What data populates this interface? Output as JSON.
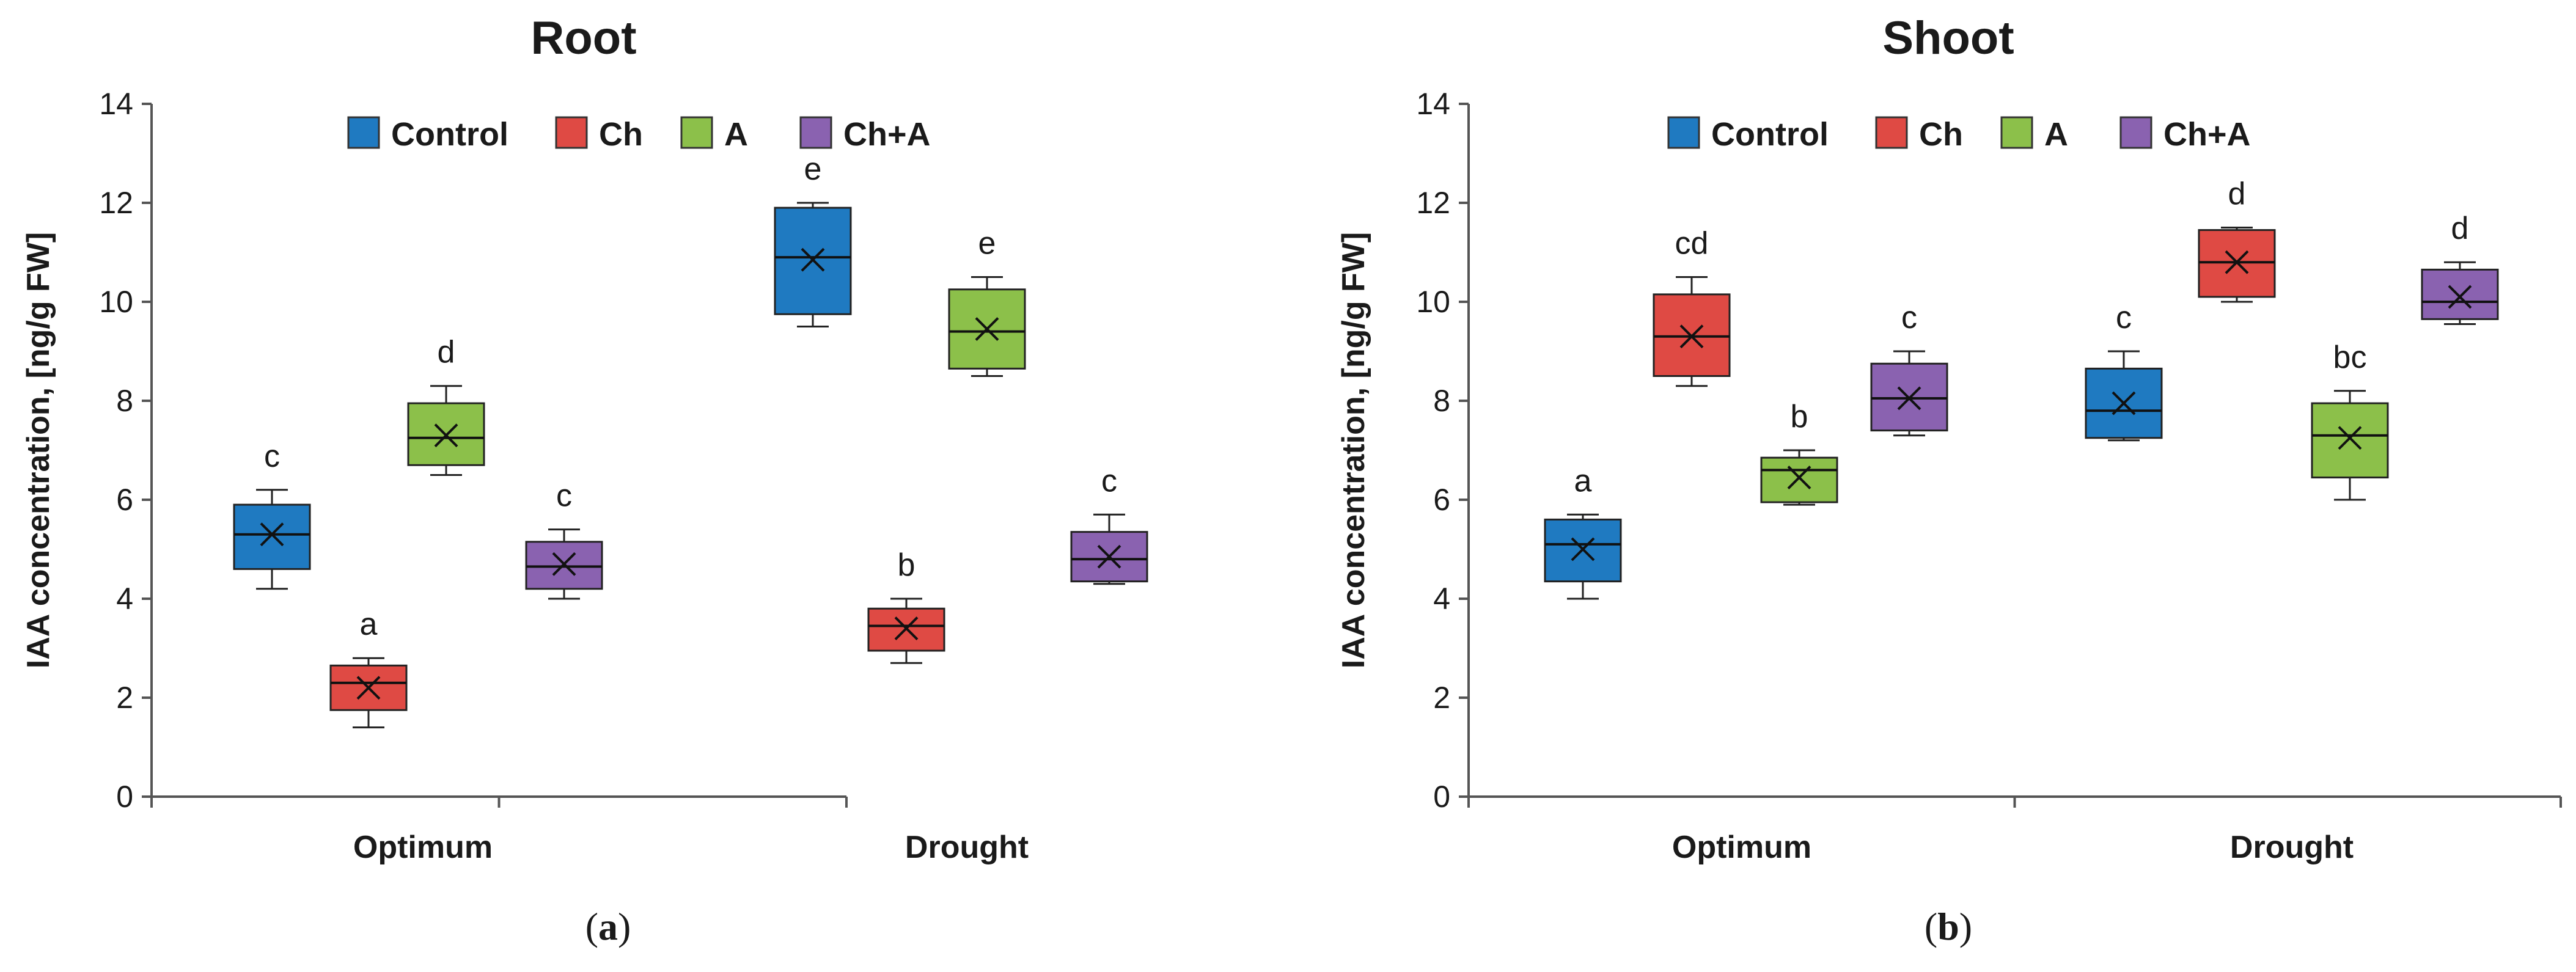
{
  "chart_data": [
    {
      "type": "box",
      "panel": "(a)",
      "panel_label": {
        "open": "(",
        "letter": "a",
        "close": ")"
      },
      "title": "Root",
      "ylabel": "IAA concentration, [ng/g FW]",
      "ylim": [
        0,
        14
      ],
      "yticks": [
        0,
        2,
        4,
        6,
        8,
        10,
        12,
        14
      ],
      "categories": [
        "Optimum",
        "Drought"
      ],
      "legend": [
        "Control",
        "Ch",
        "A",
        "Ch+A"
      ],
      "colors": {
        "Control": "#1f7ac1",
        "Ch": "#df4a44",
        "A": "#8cc04a",
        "Ch+A": "#8a62b0"
      },
      "series": [
        {
          "name": "Control",
          "boxes": [
            {
              "category": "Optimum",
              "min": 4.2,
              "q1": 4.6,
              "median": 5.3,
              "q3": 5.9,
              "max": 6.2,
              "mean": 5.3,
              "letter": "c"
            },
            {
              "category": "Drought",
              "min": 9.5,
              "q1": 9.75,
              "median": 10.9,
              "q3": 11.9,
              "max": 12.0,
              "mean": 10.85,
              "letter": "e"
            }
          ]
        },
        {
          "name": "Ch",
          "boxes": [
            {
              "category": "Optimum",
              "min": 1.4,
              "q1": 1.75,
              "median": 2.3,
              "q3": 2.65,
              "max": 2.8,
              "mean": 2.2,
              "letter": "a"
            },
            {
              "category": "Drought",
              "min": 2.7,
              "q1": 2.95,
              "median": 3.45,
              "q3": 3.8,
              "max": 4.0,
              "mean": 3.4,
              "letter": "b"
            }
          ]
        },
        {
          "name": "A",
          "boxes": [
            {
              "category": "Optimum",
              "min": 6.5,
              "q1": 6.7,
              "median": 7.25,
              "q3": 7.95,
              "max": 8.3,
              "mean": 7.3,
              "letter": "d"
            },
            {
              "category": "Drought",
              "min": 8.5,
              "q1": 8.65,
              "median": 9.4,
              "q3": 10.25,
              "max": 10.5,
              "mean": 9.45,
              "letter": "e"
            }
          ]
        },
        {
          "name": "Ch+A",
          "boxes": [
            {
              "category": "Optimum",
              "min": 4.0,
              "q1": 4.2,
              "median": 4.65,
              "q3": 5.15,
              "max": 5.4,
              "mean": 4.7,
              "letter": "c"
            },
            {
              "category": "Drought",
              "min": 4.3,
              "q1": 4.35,
              "median": 4.8,
              "q3": 5.35,
              "max": 5.7,
              "mean": 4.85,
              "letter": "c"
            }
          ]
        }
      ]
    },
    {
      "type": "box",
      "panel": "(b)",
      "panel_label": {
        "open": "(",
        "letter": "b",
        "close": ")"
      },
      "title": "Shoot",
      "ylabel": "IAA concentration, [ng/g FW]",
      "ylim": [
        0,
        14
      ],
      "yticks": [
        0,
        2,
        4,
        6,
        8,
        10,
        12,
        14
      ],
      "categories": [
        "Optimum",
        "Drought"
      ],
      "legend": [
        "Control",
        "Ch",
        "A",
        "Ch+A"
      ],
      "colors": {
        "Control": "#1f7ac1",
        "Ch": "#df4a44",
        "A": "#8cc04a",
        "Ch+A": "#8a62b0"
      },
      "series": [
        {
          "name": "Control",
          "boxes": [
            {
              "category": "Optimum",
              "min": 4.0,
              "q1": 4.35,
              "median": 5.1,
              "q3": 5.6,
              "max": 5.7,
              "mean": 5.0,
              "letter": "a"
            },
            {
              "category": "Drought",
              "min": 7.2,
              "q1": 7.25,
              "median": 7.8,
              "q3": 8.65,
              "max": 9.0,
              "mean": 7.95,
              "letter": "c"
            }
          ]
        },
        {
          "name": "Ch",
          "boxes": [
            {
              "category": "Optimum",
              "min": 8.3,
              "q1": 8.5,
              "median": 9.3,
              "q3": 10.15,
              "max": 10.5,
              "mean": 9.3,
              "letter": "cd"
            },
            {
              "category": "Drought",
              "min": 10.0,
              "q1": 10.1,
              "median": 10.8,
              "q3": 11.45,
              "max": 11.5,
              "mean": 10.8,
              "letter": "d"
            }
          ]
        },
        {
          "name": "A",
          "boxes": [
            {
              "category": "Optimum",
              "min": 5.9,
              "q1": 5.95,
              "median": 6.6,
              "q3": 6.85,
              "max": 7.0,
              "mean": 6.45,
              "letter": "b"
            },
            {
              "category": "Drought",
              "min": 6.0,
              "q1": 6.45,
              "median": 7.3,
              "q3": 7.95,
              "max": 8.2,
              "mean": 7.25,
              "letter": "bc"
            }
          ]
        },
        {
          "name": "Ch+A",
          "boxes": [
            {
              "category": "Optimum",
              "min": 7.3,
              "q1": 7.4,
              "median": 8.05,
              "q3": 8.75,
              "max": 9.0,
              "mean": 8.05,
              "letter": "c"
            },
            {
              "category": "Drought",
              "min": 9.55,
              "q1": 9.65,
              "median": 10.0,
              "q3": 10.65,
              "max": 10.8,
              "mean": 10.1,
              "letter": "d"
            }
          ]
        }
      ]
    }
  ]
}
